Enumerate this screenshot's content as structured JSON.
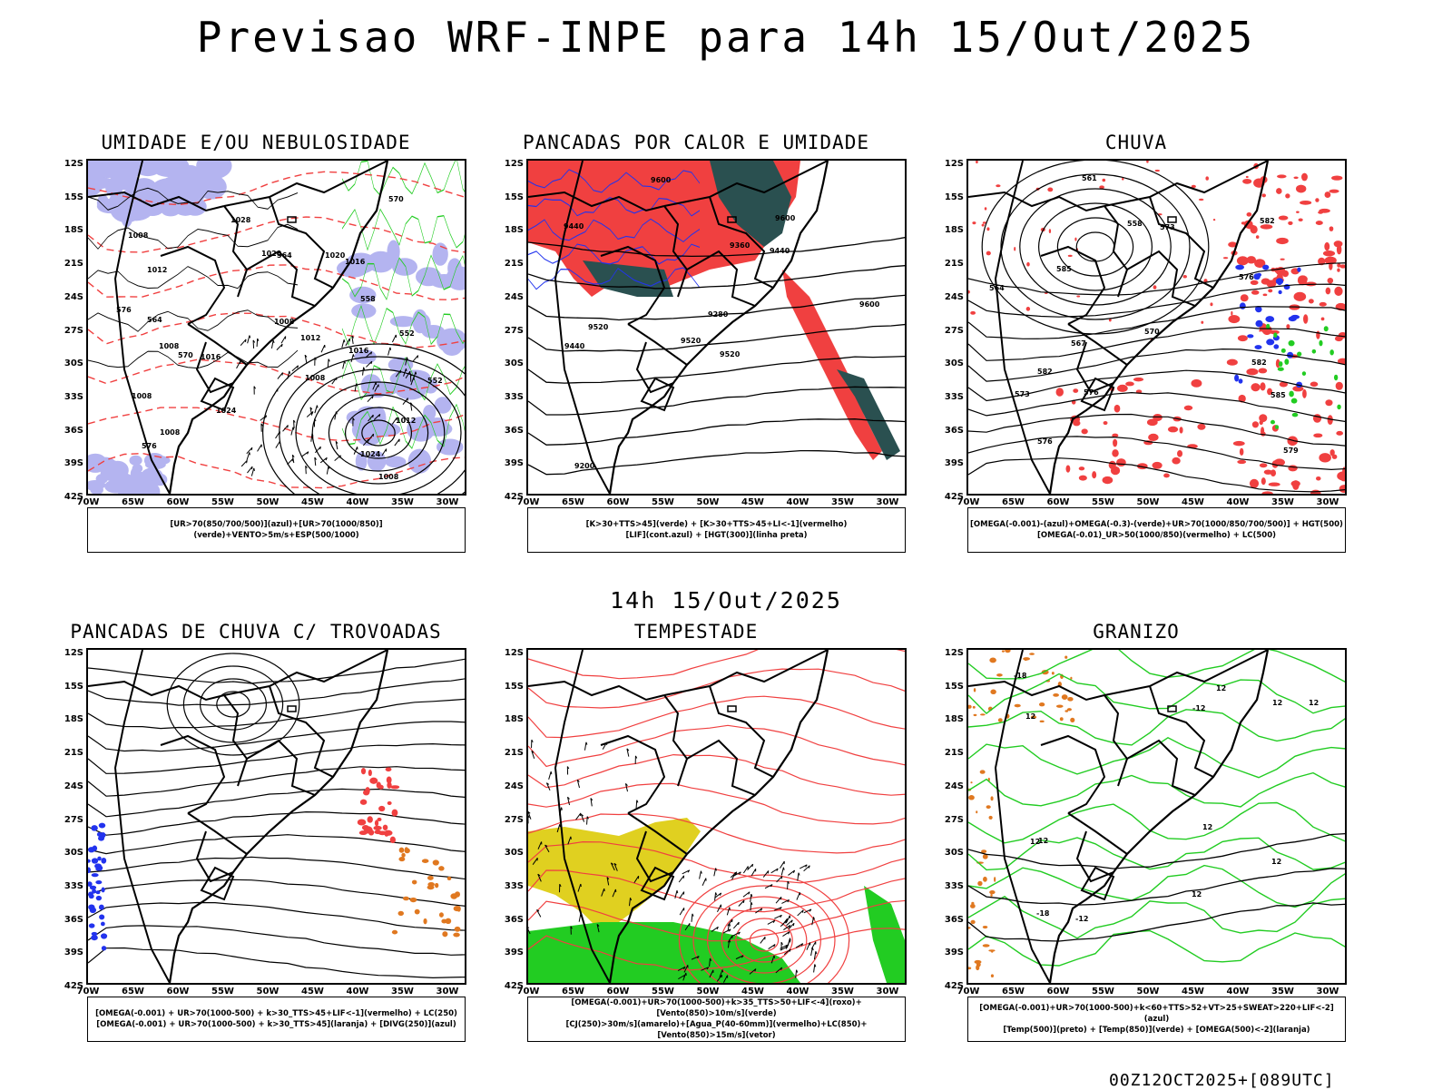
{
  "title": "Previsao WRF-INPE  para 14h 15/Out/2025",
  "mid_label": "14h 15/Out/2025",
  "footer": "00Z12OCT2025+[089UTC]",
  "lat_ticks": [
    "12S",
    "15S",
    "18S",
    "21S",
    "24S",
    "27S",
    "30S",
    "33S",
    "36S",
    "39S",
    "42S"
  ],
  "lon_ticks": [
    "70W",
    "65W",
    "60W",
    "55W",
    "50W",
    "45W",
    "40W",
    "35W",
    "30W"
  ],
  "colors": {
    "red": "#f04040",
    "green": "#22cc22",
    "blue": "#2233ee",
    "lavender": "#b4b4f0",
    "darkteal": "#2a5050",
    "yellow": "#e0d020",
    "orange": "#e07820"
  },
  "panels": [
    {
      "title": "UMIDADE E/OU NEBULOSIDADE",
      "legend": [
        "[UR>70(850/700/500)](azul)+[UR>70(1000/850)](verde)+VENTO>5m/s+ESP(500/1000)"
      ]
    },
    {
      "title": "PANCADAS POR CALOR E UMIDADE",
      "legend": [
        "[K>30+TTS>45](verde) + [K>30+TTS>45+LI<-1](vermelho)",
        "[LIF](cont.azul) + [HGT(300)](linha preta)"
      ]
    },
    {
      "title": "CHUVA",
      "legend": [
        "[OMEGA(-0.001)-(azul)+OMEGA(-0.3)-(verde)+UR>70(1000/850/700/500)] + HGT(500)",
        "[OMEGA(-0.01)_UR>50(1000/850)(vermelho) + LC(500)"
      ]
    },
    {
      "title": "PANCADAS DE CHUVA C/ TROVOADAS",
      "legend": [
        "[OMEGA(-0.001) + UR>70(1000-500) + k>30_TTS>45+LIF<-1](vermelho) + LC(250)",
        "[OMEGA(-0.001) + UR>70(1000-500) + k>30_TTS>45](laranja) + [DIVG(250)](azul)"
      ]
    },
    {
      "title": "TEMPESTADE",
      "legend": [
        "[OMEGA(-0.001)+UR>70(1000-500)+k>35_TTS>50+LIF<-4](roxo)+[Vento(850)>10m/s](verde)",
        "[CJ(250)>30m/s](amarelo)+[Agua_P(40-60mm)](vermelho)+LC(850)+[Vento(850)>15m/s](vetor)"
      ]
    },
    {
      "title": "GRANIZO",
      "legend": [
        "[OMEGA(-0.001)+UR>70(1000-500)+k<60+TTS>52+VT>25+SWEAT>220+LIF<-2](azul)",
        "[Temp(500)](preto) + [Temp(850)](verde) + [OMEGA(500)<-2](laranja)"
      ]
    }
  ],
  "contour_labels": {
    "p0": [
      "1008",
      "1008",
      "1008",
      "1008",
      "1012",
      "1012",
      "1008",
      "1016",
      "1016",
      "1020",
      "1020",
      "1024",
      "1024",
      "1028",
      "1012",
      "1008",
      "1016",
      "1008",
      "576",
      "576",
      "570",
      "564",
      "558",
      "552",
      "552",
      "564",
      "570"
    ],
    "p1": [
      "9600",
      "9600",
      "9600",
      "9520",
      "9520",
      "9520",
      "9440",
      "9440",
      "9440",
      "9360",
      "9280",
      "9200"
    ],
    "p2": [
      "585",
      "582",
      "585",
      "582",
      "576",
      "576",
      "573",
      "570",
      "567",
      "564",
      "561",
      "558",
      "579",
      "573",
      "576",
      "582"
    ],
    "p5": [
      "12",
      "12",
      "12",
      "12",
      "-12",
      "-12",
      "-18",
      "-18",
      "12",
      "12",
      "12",
      "12",
      "12"
    ]
  }
}
